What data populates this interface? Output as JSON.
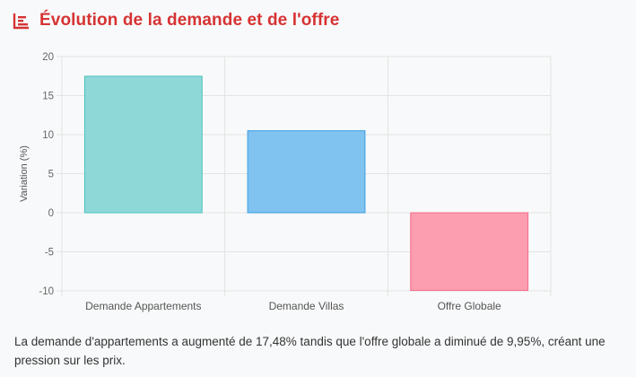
{
  "header": {
    "icon": "chart-bar-icon",
    "title": "Évolution de la demande et de l'offre",
    "title_color": "#d63333"
  },
  "chart_data": {
    "type": "bar",
    "categories": [
      "Demande Appartements",
      "Demande Villas",
      "Offre Globale"
    ],
    "values": [
      17.48,
      10.5,
      -9.95
    ],
    "colors": [
      "#8fd8d8",
      "#80c2f0",
      "#fc9db0"
    ],
    "border_colors": [
      "#4bbfbf",
      "#3a9fe0",
      "#f56a87"
    ],
    "title": "",
    "xlabel": "",
    "ylabel": "Variation (%)",
    "ylim": [
      -10,
      20
    ],
    "yticks": [
      20,
      15,
      10,
      5,
      0,
      -5,
      -10
    ],
    "grid": true,
    "legend": "none"
  },
  "caption": "La demande d'appartements a augmenté de 17,48% tandis que l'offre globale a diminué de 9,95%, créant une pression sur les prix."
}
